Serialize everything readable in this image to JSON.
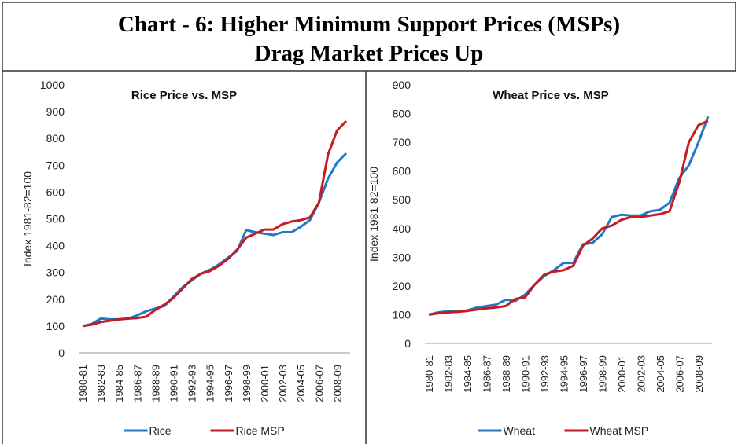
{
  "header": {
    "title_lines": [
      "Chart - 6: Higher Minimum Support Prices (MSPs)",
      "Drag Market Prices Up"
    ]
  },
  "chart_data": [
    {
      "type": "line",
      "title": "Rice Price vs. MSP",
      "y_label": "Index 1981-82=100",
      "categories": [
        "1980-81",
        null,
        "1982-83",
        null,
        "1984-85",
        null,
        "1986-87",
        null,
        "1988-89",
        null,
        "1990-91",
        null,
        "1992-93",
        null,
        "1994-95",
        null,
        "1996-97",
        null,
        "1998-99",
        null,
        "2000-01",
        null,
        "2002-03",
        null,
        "2004-05",
        null,
        "2006-07",
        null,
        "2008-09",
        null
      ],
      "series": [
        {
          "name": "Rice",
          "color": "#1f78c8",
          "values": [
            100,
            108,
            128,
            125,
            125,
            128,
            140,
            155,
            165,
            175,
            210,
            245,
            270,
            295,
            310,
            330,
            355,
            380,
            458,
            450,
            445,
            440,
            450,
            450,
            470,
            495,
            560,
            650,
            710,
            745
          ]
        },
        {
          "name": "Rice MSP",
          "color": "#c41a22",
          "values": [
            100,
            105,
            115,
            120,
            125,
            128,
            130,
            135,
            160,
            180,
            205,
            240,
            275,
            295,
            305,
            325,
            350,
            385,
            430,
            445,
            460,
            460,
            480,
            490,
            495,
            505,
            560,
            740,
            830,
            865
          ]
        }
      ],
      "ylim": [
        0,
        1000
      ],
      "yticks": [
        0,
        100,
        200,
        300,
        400,
        500,
        600,
        700,
        800,
        900,
        1000
      ],
      "legend": "bottom"
    },
    {
      "type": "line",
      "title": "Wheat Price vs. MSP",
      "y_label": "Index 1981-82=100",
      "categories": [
        "1980-81",
        null,
        "1982-83",
        null,
        "1984-85",
        null,
        "1986-87",
        null,
        "1988-89",
        null,
        "1990-91",
        null,
        "1992-93",
        null,
        "1994-95",
        null,
        "1996-97",
        null,
        "1998-99",
        null,
        "2000-01",
        null,
        "2002-03",
        null,
        "2004-05",
        null,
        "2006-07",
        null,
        "2008-09",
        null
      ],
      "series": [
        {
          "name": "Wheat",
          "color": "#1f78c8",
          "values": [
            100,
            108,
            112,
            110,
            115,
            125,
            130,
            135,
            152,
            148,
            170,
            205,
            235,
            255,
            280,
            280,
            345,
            350,
            380,
            440,
            448,
            445,
            445,
            460,
            465,
            490,
            575,
            620,
            700,
            790
          ]
        },
        {
          "name": "Wheat MSP",
          "color": "#c41a22",
          "values": [
            100,
            105,
            108,
            110,
            113,
            118,
            122,
            125,
            130,
            155,
            160,
            205,
            240,
            250,
            255,
            270,
            340,
            365,
            400,
            410,
            430,
            440,
            440,
            445,
            450,
            460,
            560,
            700,
            760,
            775
          ]
        }
      ],
      "ylim": [
        0,
        900
      ],
      "yticks": [
        0,
        100,
        200,
        300,
        400,
        500,
        600,
        700,
        800,
        900
      ],
      "legend": "bottom"
    }
  ]
}
